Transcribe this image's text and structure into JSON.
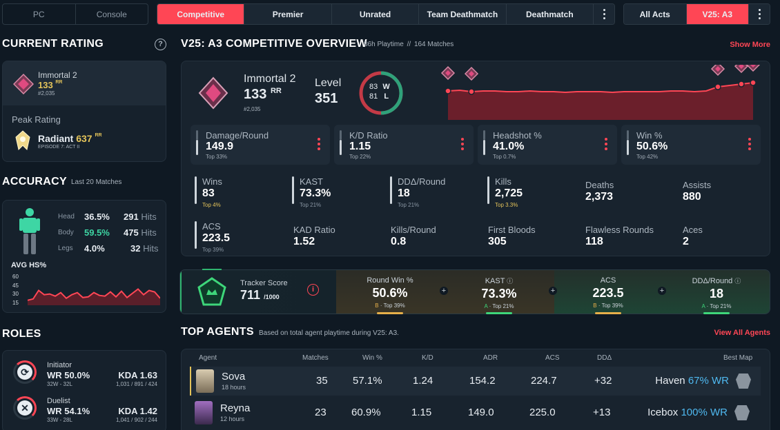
{
  "platform": {
    "options": [
      "PC",
      "Console"
    ],
    "selected": "PC"
  },
  "mode_tabs": [
    "Competitive",
    "Premier",
    "Unrated",
    "Team Deathmatch",
    "Deathmatch"
  ],
  "mode_selected": "Competitive",
  "act_tabs": [
    "All Acts",
    "V25: A3"
  ],
  "act_selected": "V25: A3",
  "current_rating": {
    "title": "CURRENT RATING",
    "rank": "Immortal 2",
    "rr": "133",
    "rr_unit": "RR",
    "position": "#2,035",
    "peak_label": "Peak Rating",
    "peak_rank": "Radiant",
    "peak_rr": "637",
    "peak_rr_unit": "RR",
    "peak_episode": "EPISODE 7: ACT II"
  },
  "accuracy": {
    "title": "ACCURACY",
    "subtitle": "Last 20 Matches",
    "rows": [
      {
        "part": "Head",
        "pct": "36.5%",
        "hits": "291",
        "hits_label": "Hits"
      },
      {
        "part": "Body",
        "pct": "59.5%",
        "hits": "475",
        "hits_label": "Hits"
      },
      {
        "part": "Legs",
        "pct": "4.0%",
        "hits": "32",
        "hits_label": "Hits"
      }
    ],
    "avg_hs_label": "AVG HS%",
    "chart_data": {
      "type": "area",
      "y_ticks": [
        "60",
        "45",
        "30",
        "15"
      ],
      "ylim": [
        15,
        60
      ],
      "values": [
        22,
        24,
        36,
        30,
        31,
        28,
        33,
        25,
        30,
        33,
        26,
        27,
        33,
        29,
        28,
        34,
        27,
        35,
        26,
        32,
        38,
        30,
        36,
        34,
        25
      ]
    }
  },
  "roles": {
    "title": "ROLES",
    "items": [
      {
        "name": "Initiator",
        "wr": "WR 50.0%",
        "record": "32W - 32L",
        "kda": "KDA 1.63",
        "kda_detail": "1,031 / 891 / 424",
        "glyph": "⟳"
      },
      {
        "name": "Duelist",
        "wr": "WR 54.1%",
        "record": "33W - 28L",
        "kda": "KDA 1.42",
        "kda_detail": "1,041 / 902 / 244",
        "glyph": "✕"
      }
    ]
  },
  "overview": {
    "title": "V25: A3 COMPETITIVE OVERVIEW",
    "playtime": "86h Playtime",
    "separator": "//",
    "matches": "164 Matches",
    "show_more": "Show More",
    "rank": "Immortal 2",
    "rr": "133",
    "rr_unit": "RR",
    "position": "#2,035",
    "level_label": "Level",
    "level": "351",
    "wins": "83",
    "wins_letter": "W",
    "losses": "81",
    "losses_letter": "L"
  },
  "rr_chart": {
    "chart_data": {
      "type": "area",
      "values": [
        42,
        43,
        41,
        42,
        42,
        41,
        41,
        42,
        41,
        41,
        40,
        41,
        41,
        41,
        40,
        41,
        41,
        41,
        41,
        42,
        42,
        41,
        42,
        48,
        50,
        52,
        54
      ]
    }
  },
  "stat_cards": [
    {
      "label": "Damage/Round",
      "value": "149.9",
      "pct": "Top 33%",
      "pct_color": "muted"
    },
    {
      "label": "K/D Ratio",
      "value": "1.15",
      "pct": "Top 22%",
      "pct_color": "muted"
    },
    {
      "label": "Headshot %",
      "value": "41.0%",
      "pct": "Top 0.7%",
      "pct_color": "gold"
    },
    {
      "label": "Win %",
      "value": "50.6%",
      "pct": "Top 42%",
      "pct_color": "muted"
    }
  ],
  "grid_stats": [
    {
      "label": "Wins",
      "value": "83",
      "pct": "Top 4%",
      "pct_color": "gold",
      "bar": true
    },
    {
      "label": "KAST",
      "value": "73.3%",
      "pct": "Top 21%",
      "pct_color": "muted",
      "bar": true
    },
    {
      "label": "DDΔ/Round",
      "value": "18",
      "pct": "Top 21%",
      "pct_color": "muted",
      "bar": true
    },
    {
      "label": "Kills",
      "value": "2,725",
      "pct": "Top 3.3%",
      "pct_color": "gold",
      "bar": true
    },
    {
      "label": "Deaths",
      "value": "2,373",
      "pct": "",
      "pct_color": "muted",
      "bar": false
    },
    {
      "label": "Assists",
      "value": "880",
      "pct": "",
      "pct_color": "muted",
      "bar": false
    },
    {
      "label": "ACS",
      "value": "223.5",
      "pct": "Top 39%",
      "pct_color": "muted",
      "bar": true
    },
    {
      "label": "KAD Ratio",
      "value": "1.52",
      "pct": "",
      "pct_color": "muted",
      "bar": false
    },
    {
      "label": "Kills/Round",
      "value": "0.8",
      "pct": "",
      "pct_color": "muted",
      "bar": false
    },
    {
      "label": "First Bloods",
      "value": "305",
      "pct": "",
      "pct_color": "muted",
      "bar": false
    },
    {
      "label": "Flawless Rounds",
      "value": "118",
      "pct": "",
      "pct_color": "muted",
      "bar": false
    },
    {
      "label": "Aces",
      "value": "2",
      "pct": "",
      "pct_color": "muted",
      "bar": false
    }
  ],
  "tracker": {
    "label": "Tracker Score",
    "score": "711",
    "out_of": "/1000",
    "cells": [
      {
        "label": "Round Win %",
        "value": "50.6%",
        "grade": "B",
        "pct": "Top 39%",
        "color": "#e7b04a",
        "info": false
      },
      {
        "label": "KAST",
        "value": "73.3%",
        "grade": "A",
        "pct": "Top 21%",
        "color": "#3ed67a",
        "info": true
      },
      {
        "label": "ACS",
        "value": "223.5",
        "grade": "B",
        "pct": "Top 39%",
        "color": "#e7b04a",
        "info": false
      },
      {
        "label": "DDΔ/Round",
        "value": "18",
        "grade": "A",
        "pct": "Top 21%",
        "color": "#3ed67a",
        "info": true
      }
    ]
  },
  "top_agents": {
    "title": "TOP AGENTS",
    "subtitle": "Based on total agent playtime during V25: A3.",
    "view_all": "View All Agents",
    "columns": [
      "Agent",
      "Matches",
      "Win %",
      "K/D",
      "ADR",
      "ACS",
      "DDΔ",
      "Best Map"
    ],
    "rows": [
      {
        "name": "Sova",
        "hours": "18 hours",
        "matches": "35",
        "win": "57.1%",
        "kd": "1.24",
        "adr": "154.2",
        "acs": "224.7",
        "dd": "+32",
        "map": "Haven",
        "map_wr": "67% WR"
      },
      {
        "name": "Reyna",
        "hours": "12 hours",
        "matches": "23",
        "win": "60.9%",
        "kd": "1.15",
        "adr": "149.0",
        "acs": "225.0",
        "dd": "+13",
        "map": "Icebox",
        "map_wr": "100% WR"
      }
    ]
  },
  "colors": {
    "accent": "#ff4655",
    "bg": "#0f1923",
    "card": "#16212c",
    "gold": "#e4c45a",
    "green": "#3ed6a4"
  }
}
